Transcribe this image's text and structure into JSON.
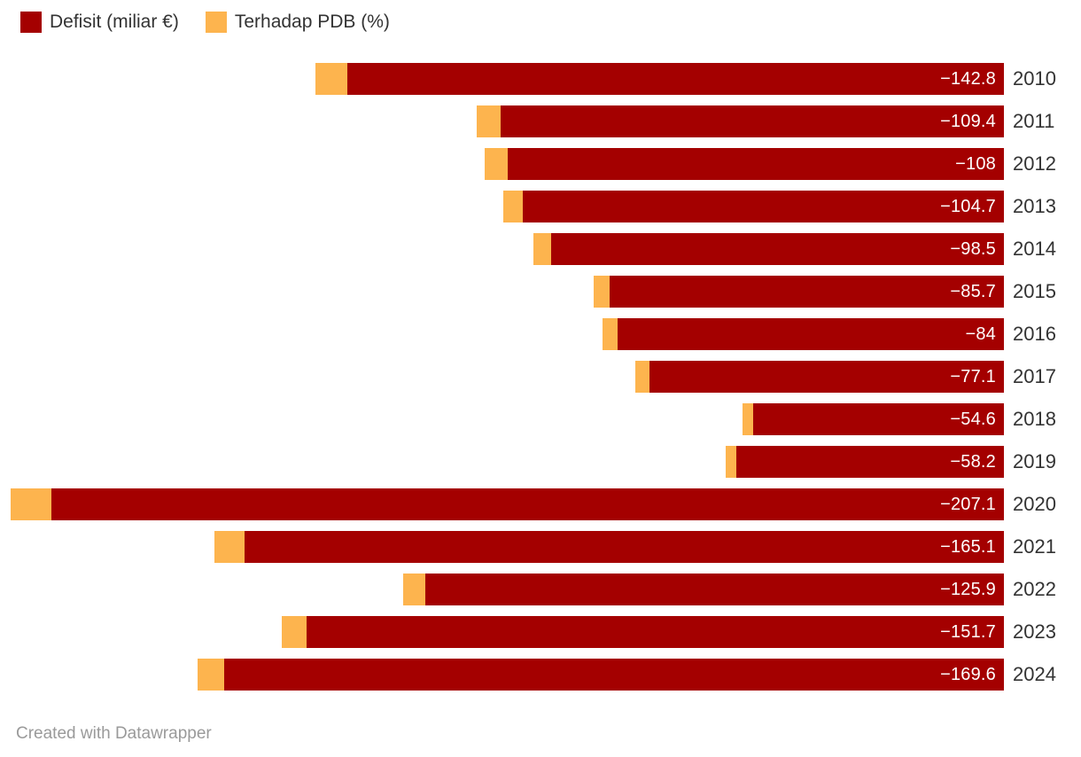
{
  "legend": {
    "items": [
      {
        "label": "Defisit (miliar €)",
        "color": "#a40000"
      },
      {
        "label": "Terhadap PDB (%)",
        "color": "#fdb44e"
      }
    ]
  },
  "attribution": "Created with Datawrapper",
  "colors": {
    "deficit_bar": "#a40000",
    "pdb_bar": "#fdb44e",
    "bar_value_text": "#ffffff",
    "year_text": "#333333",
    "legend_text": "#333333",
    "attribution_text": "#9a9a9a",
    "background": "#ffffff"
  },
  "chart_data": {
    "type": "bar",
    "orientation": "horizontal",
    "bar_alignment": "right-aligned, bars extend left (negative values)",
    "grid": false,
    "axes_shown": false,
    "legend_position": "top-left",
    "title": "",
    "xlabel": "",
    "ylabel": "",
    "categories": [
      "2010",
      "2011",
      "2012",
      "2013",
      "2014",
      "2015",
      "2016",
      "2017",
      "2018",
      "2019",
      "2020",
      "2021",
      "2022",
      "2023",
      "2024"
    ],
    "series": [
      {
        "name": "Defisit (miliar €)",
        "color": "#a40000",
        "values": [
          -142.8,
          -109.4,
          -108,
          -104.7,
          -98.5,
          -85.7,
          -84,
          -77.1,
          -54.6,
          -58.2,
          -207.1,
          -165.1,
          -125.9,
          -151.7,
          -169.6
        ],
        "labels": [
          "−142.8",
          "−109.4",
          "−108",
          "−104.7",
          "−98.5",
          "−85.7",
          "−84",
          "−77.1",
          "−54.6",
          "−58.2",
          "−207.1",
          "−165.1",
          "−125.9",
          "−151.7",
          "−169.6"
        ],
        "labels_shown": true
      },
      {
        "name": "Terhadap PDB (%)",
        "color": "#fdb44e",
        "values": [
          -6.9,
          -5.2,
          -5.0,
          -4.1,
          -3.9,
          -3.6,
          -3.4,
          -3.0,
          -2.3,
          -2.4,
          -8.9,
          -6.6,
          -4.8,
          -5.4,
          -5.8
        ],
        "labels_shown": false,
        "note": "values estimated from orange bar widths (no numeric labels shown in chart)"
      }
    ],
    "stacking": "pdb segment drawn at the far (left) end of each deficit bar, same linear scale",
    "x_range_abs": [
      0,
      216
    ]
  }
}
